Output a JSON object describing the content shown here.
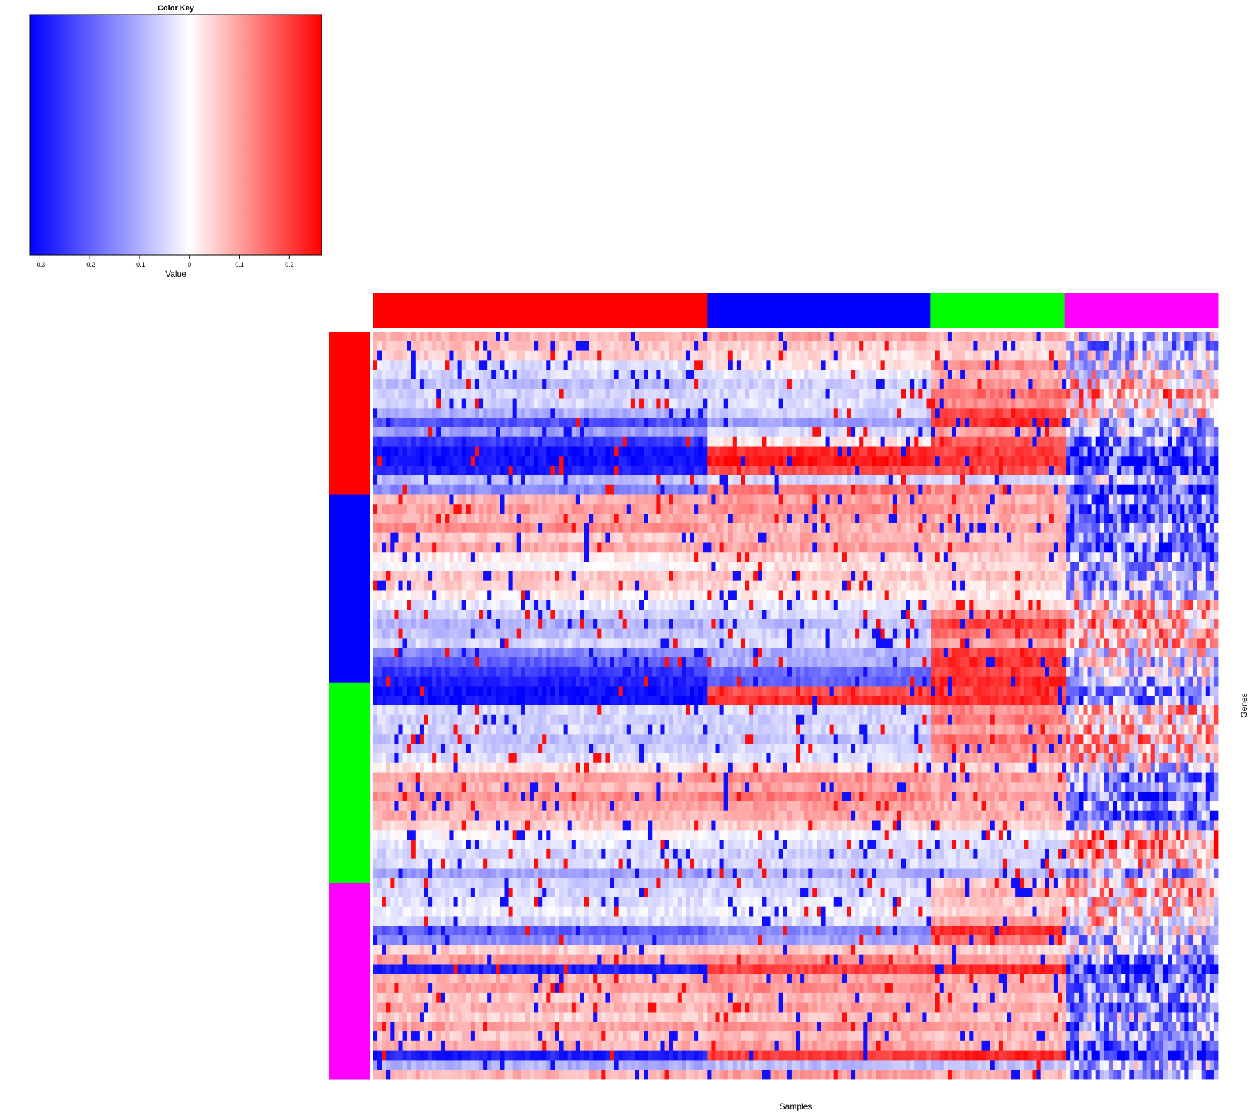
{
  "chart_data": {
    "type": "heatmap",
    "xlabel": "Samples",
    "ylabel": "Genes",
    "color_key": {
      "title": "Color Key",
      "axis_label": "Value",
      "range": [
        -0.32,
        0.265
      ],
      "ticks": [
        {
          "value": -0.3,
          "label": "-0.3"
        },
        {
          "value": -0.2,
          "label": "-0.2"
        },
        {
          "value": -0.1,
          "label": "-0.1"
        },
        {
          "value": 0,
          "label": "0"
        },
        {
          "value": 0.1,
          "label": "0.1"
        },
        {
          "value": 0.2,
          "label": "0.2"
        }
      ],
      "colors": [
        "#0000ff",
        "#ffffff",
        "#ff0000"
      ]
    },
    "column_groups": [
      {
        "color": "#ff0000",
        "fraction": 0.395
      },
      {
        "color": "#0000ff",
        "fraction": 0.264
      },
      {
        "color": "#00ff00",
        "fraction": 0.159
      },
      {
        "color": "#ff00ff",
        "fraction": 0.182
      }
    ],
    "row_groups": [
      {
        "color": "#ff0000",
        "fraction": 0.218
      },
      {
        "color": "#0000ff",
        "fraction": 0.252
      },
      {
        "color": "#00ff00",
        "fraction": 0.267
      },
      {
        "color": "#ff00ff",
        "fraction": 0.263
      }
    ],
    "n_rows": 78,
    "n_cols": 200,
    "row_profiles": [
      [
        0.08,
        0.1,
        0.08,
        -0.05
      ],
      [
        0.06,
        0.05,
        0.05,
        -0.1
      ],
      [
        0.05,
        0.04,
        0.04,
        -0.05
      ],
      [
        -0.04,
        0.02,
        0.12,
        -0.05
      ],
      [
        -0.05,
        -0.03,
        0.08,
        0.0
      ],
      [
        -0.08,
        -0.06,
        0.1,
        0.05
      ],
      [
        -0.06,
        -0.05,
        0.15,
        0.08
      ],
      [
        -0.05,
        -0.04,
        0.12,
        0.06
      ],
      [
        -0.1,
        -0.06,
        0.2,
        0.0
      ],
      [
        -0.22,
        -0.12,
        0.22,
        -0.1
      ],
      [
        -0.12,
        -0.05,
        0.1,
        -0.1
      ],
      [
        -0.25,
        0.02,
        0.18,
        -0.15
      ],
      [
        -0.3,
        0.22,
        0.2,
        -0.2
      ],
      [
        -0.3,
        0.24,
        0.22,
        -0.25
      ],
      [
        -0.28,
        0.18,
        0.18,
        -0.2
      ],
      [
        -0.08,
        -0.05,
        -0.05,
        -0.1
      ],
      [
        -0.15,
        0.15,
        0.12,
        -0.25
      ],
      [
        0.08,
        0.1,
        0.08,
        -0.15
      ],
      [
        0.1,
        0.12,
        0.1,
        -0.2
      ],
      [
        0.08,
        0.1,
        0.08,
        -0.18
      ],
      [
        0.12,
        0.08,
        0.1,
        -0.15
      ],
      [
        0.06,
        0.08,
        0.06,
        -0.12
      ],
      [
        0.09,
        0.1,
        0.09,
        -0.18
      ],
      [
        0.02,
        0.05,
        0.05,
        -0.15
      ],
      [
        0.0,
        0.03,
        0.05,
        -0.1
      ],
      [
        0.06,
        0.06,
        0.06,
        -0.12
      ],
      [
        0.05,
        0.04,
        0.04,
        -0.1
      ],
      [
        0.02,
        0.02,
        0.02,
        -0.05
      ],
      [
        -0.03,
        -0.03,
        0.05,
        0.05
      ],
      [
        -0.06,
        -0.05,
        0.12,
        0.05
      ],
      [
        -0.1,
        -0.08,
        0.2,
        0.08
      ],
      [
        -0.08,
        -0.06,
        0.15,
        0.06
      ],
      [
        -0.05,
        -0.05,
        0.1,
        0.05
      ],
      [
        -0.15,
        -0.1,
        0.2,
        0.0
      ],
      [
        -0.2,
        -0.1,
        0.22,
        -0.05
      ],
      [
        -0.25,
        -0.18,
        0.2,
        -0.05
      ],
      [
        -0.28,
        -0.2,
        0.22,
        -0.1
      ],
      [
        -0.3,
        0.18,
        0.2,
        -0.15
      ],
      [
        -0.3,
        0.22,
        0.22,
        -0.15
      ],
      [
        -0.05,
        -0.05,
        0.12,
        0.05
      ],
      [
        -0.06,
        -0.06,
        0.14,
        0.06
      ],
      [
        -0.05,
        -0.05,
        0.1,
        0.06
      ],
      [
        -0.08,
        -0.07,
        0.15,
        0.08
      ],
      [
        -0.06,
        -0.05,
        0.12,
        0.05
      ],
      [
        -0.04,
        -0.04,
        0.1,
        0.04
      ],
      [
        0.03,
        0.03,
        0.05,
        -0.05
      ],
      [
        0.1,
        0.12,
        0.1,
        -0.15
      ],
      [
        0.08,
        0.1,
        0.08,
        -0.12
      ],
      [
        0.12,
        0.14,
        0.1,
        -0.2
      ],
      [
        0.09,
        0.1,
        0.08,
        -0.15
      ],
      [
        0.08,
        0.09,
        0.08,
        -0.18
      ],
      [
        0.05,
        0.05,
        0.05,
        -0.1
      ],
      [
        0.0,
        -0.02,
        -0.02,
        0.1
      ],
      [
        -0.03,
        -0.04,
        -0.05,
        0.12
      ],
      [
        -0.05,
        -0.06,
        -0.05,
        0.1
      ],
      [
        -0.04,
        -0.05,
        -0.05,
        0.06
      ],
      [
        -0.12,
        -0.1,
        -0.1,
        -0.1
      ],
      [
        -0.06,
        -0.06,
        0.05,
        0.05
      ],
      [
        -0.05,
        -0.05,
        0.08,
        0.08
      ],
      [
        -0.04,
        -0.03,
        0.06,
        0.05
      ],
      [
        -0.02,
        -0.02,
        0.05,
        0.06
      ],
      [
        -0.05,
        -0.04,
        0.1,
        0.04
      ],
      [
        -0.2,
        -0.15,
        0.22,
        -0.05
      ],
      [
        -0.15,
        -0.12,
        0.15,
        -0.08
      ],
      [
        0.05,
        0.06,
        0.05,
        -0.05
      ],
      [
        0.1,
        0.12,
        0.1,
        -0.15
      ],
      [
        -0.28,
        0.2,
        0.22,
        -0.25
      ],
      [
        0.08,
        0.1,
        0.08,
        -0.15
      ],
      [
        0.1,
        0.12,
        0.1,
        -0.18
      ],
      [
        0.06,
        0.08,
        0.06,
        -0.12
      ],
      [
        0.08,
        0.1,
        0.09,
        -0.2
      ],
      [
        0.05,
        0.06,
        0.06,
        -0.1
      ],
      [
        0.1,
        0.12,
        0.1,
        -0.15
      ],
      [
        0.06,
        0.08,
        0.07,
        -0.12
      ],
      [
        0.08,
        0.1,
        0.08,
        -0.2
      ],
      [
        -0.28,
        0.2,
        0.22,
        -0.25
      ],
      [
        -0.1,
        -0.08,
        -0.08,
        -0.1
      ],
      [
        0.08,
        0.1,
        0.08,
        -0.12
      ]
    ]
  }
}
